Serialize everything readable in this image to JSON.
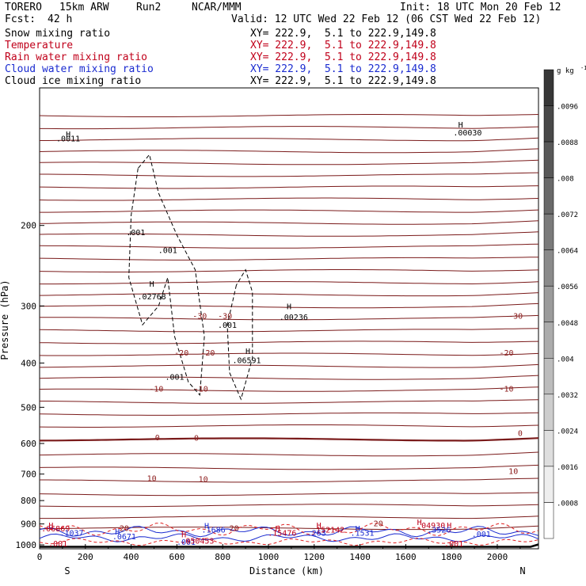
{
  "header": {
    "model": "TORERO",
    "resolution": "15km ARW",
    "run": "Run2",
    "org": "NCAR/MMM",
    "init": "Init: 18 UTC Mon 20 Feb 12",
    "fcst_label": "Fcst:",
    "fcst_value": "42 h",
    "valid": "Valid: 12 UTC Wed 22 Feb 12 (06 CST Wed 22 Feb 12)"
  },
  "fields": [
    {
      "name": "Snow mixing ratio",
      "xy": "XY= 222.9,  5.1 to 222.9,149.8",
      "color": "#000000"
    },
    {
      "name": "Temperature",
      "xy": "XY= 222.9,  5.1 to 222.9,149.8",
      "color": "#c0001a"
    },
    {
      "name": "Rain water mixing ratio",
      "xy": "XY= 222.9,  5.1 to 222.9,149.8",
      "color": "#c0001a"
    },
    {
      "name": "Cloud water mixing ratio",
      "xy": "XY= 222.9,  5.1 to 222.9,149.8",
      "color": "#1a2bd0"
    },
    {
      "name": "Cloud ice mixing ratio",
      "xy": "XY= 222.9,  5.1 to 222.9,149.8",
      "color": "#000000"
    }
  ],
  "chart_data": {
    "type": "line",
    "xlabel": "Distance (km)",
    "ylabel": "Pressure (hPa)",
    "xlim": [
      0,
      2180
    ],
    "ylim": [
      1020,
      100
    ],
    "y_scale": "log",
    "x_ticks": [
      0,
      200,
      400,
      600,
      800,
      1000,
      1200,
      1400,
      1600,
      1800,
      2000
    ],
    "y_ticks": [
      200,
      300,
      400,
      500,
      600,
      700,
      800,
      900,
      1000
    ],
    "end_labels": {
      "left": "S",
      "right": "N"
    },
    "colorbar": {
      "unit": "g kg",
      "unit_exp": "-1",
      "ticks": [
        ".0008",
        ".0016",
        ".0024",
        ".0032",
        ".004",
        ".0048",
        ".0056",
        ".0064",
        ".0072",
        ".008",
        ".0088",
        ".0096"
      ]
    },
    "temperature_contours": [
      {
        "value": -30,
        "label": "-30",
        "p": 325
      },
      {
        "value": -20,
        "label": "-20",
        "p": 385
      },
      {
        "value": -10,
        "label": "-10",
        "p": 460
      },
      {
        "value": 0,
        "label": "0",
        "p": 588
      },
      {
        "value": 10,
        "label": "10",
        "p": 725
      }
    ],
    "annotations": [
      {
        "text": "H",
        "x": 125,
        "p": 128,
        "color": "#000000"
      },
      {
        "text": ".0011",
        "x": 125,
        "p": 131,
        "color": "#000000"
      },
      {
        "text": ".001",
        "x": 420,
        "p": 210,
        "color": "#000000"
      },
      {
        "text": ".001",
        "x": 560,
        "p": 230,
        "color": "#000000"
      },
      {
        "text": "H",
        "x": 490,
        "p": 272,
        "color": "#000000"
      },
      {
        "text": ".02768",
        "x": 490,
        "p": 290,
        "color": "#000000"
      },
      {
        "text": ".001",
        "x": 820,
        "p": 335,
        "color": "#000000"
      },
      {
        "text": "H",
        "x": 910,
        "p": 382,
        "color": "#000000"
      },
      {
        "text": ".06591",
        "x": 905,
        "p": 400,
        "color": "#000000"
      },
      {
        "text": ".001",
        "x": 590,
        "p": 435,
        "color": "#000000"
      },
      {
        "text": "H",
        "x": 1090,
        "p": 305,
        "color": "#000000"
      },
      {
        "text": ".00236",
        "x": 1110,
        "p": 322,
        "color": "#000000"
      },
      {
        "text": "H",
        "x": 1840,
        "p": 122,
        "color": "#000000"
      },
      {
        "text": ".00030",
        "x": 1870,
        "p": 127,
        "color": "#000000"
      },
      {
        "text": "-30",
        "x": 700,
        "p": 320,
        "color": "#8b1a1a"
      },
      {
        "text": "-30",
        "x": 810,
        "p": 320,
        "color": "#8b1a1a"
      },
      {
        "text": "-30",
        "x": 2080,
        "p": 320,
        "color": "#8b1a1a"
      },
      {
        "text": "-20",
        "x": 620,
        "p": 385,
        "color": "#8b1a1a"
      },
      {
        "text": "-20",
        "x": 735,
        "p": 385,
        "color": "#8b1a1a"
      },
      {
        "text": "-20",
        "x": 2040,
        "p": 385,
        "color": "#8b1a1a"
      },
      {
        "text": "-10",
        "x": 510,
        "p": 462,
        "color": "#8b1a1a"
      },
      {
        "text": "-10",
        "x": 705,
        "p": 462,
        "color": "#8b1a1a"
      },
      {
        "text": "-10",
        "x": 2040,
        "p": 462,
        "color": "#8b1a1a"
      },
      {
        "text": "0",
        "x": 515,
        "p": 590,
        "color": "#8b1a1a"
      },
      {
        "text": "0",
        "x": 685,
        "p": 592,
        "color": "#8b1a1a"
      },
      {
        "text": "0",
        "x": 2100,
        "p": 578,
        "color": "#8b1a1a"
      },
      {
        "text": "10",
        "x": 490,
        "p": 725,
        "color": "#8b1a1a"
      },
      {
        "text": "10",
        "x": 715,
        "p": 728,
        "color": "#8b1a1a"
      },
      {
        "text": "10",
        "x": 2070,
        "p": 700,
        "color": "#8b1a1a"
      },
      {
        "text": "20",
        "x": 370,
        "p": 933,
        "color": "#8b1a1a"
      },
      {
        "text": "20",
        "x": 850,
        "p": 933,
        "color": "#8b1a1a"
      },
      {
        "text": "20",
        "x": 1480,
        "p": 910,
        "color": "#8b1a1a"
      },
      {
        "text": "H",
        "x": 50,
        "p": 920,
        "color": "#c0001a"
      },
      {
        "text": ".06869",
        "x": 70,
        "p": 935,
        "color": "#c0001a"
      },
      {
        "text": ".1037",
        "x": 140,
        "p": 955,
        "color": "#1a2bd0"
      },
      {
        "text": "H",
        "x": 340,
        "p": 950,
        "color": "#1a2bd0"
      },
      {
        "text": ".0671",
        "x": 370,
        "p": 972,
        "color": "#1a2bd0"
      },
      {
        "text": "H",
        "x": 630,
        "p": 962,
        "color": "#c0001a"
      },
      {
        "text": ".001",
        "x": 640,
        "p": 1000,
        "color": "#1a2bd0"
      },
      {
        "text": ".050453",
        "x": 690,
        "p": 993,
        "color": "#c0001a"
      },
      {
        "text": "H",
        "x": 730,
        "p": 922,
        "color": "#1a2bd0"
      },
      {
        "text": ".1686",
        "x": 760,
        "p": 940,
        "color": "#1a2bd0"
      },
      {
        "text": "H",
        "x": 1040,
        "p": 935,
        "color": "#c0001a"
      },
      {
        "text": ".15476",
        "x": 1060,
        "p": 955,
        "color": "#c0001a"
      },
      {
        "text": "H",
        "x": 1220,
        "p": 920,
        "color": "#c0001a"
      },
      {
        "text": ".152142",
        "x": 1260,
        "p": 940,
        "color": "#c0001a"
      },
      {
        "text": ".263",
        "x": 1210,
        "p": 955,
        "color": "#1a2bd0"
      },
      {
        "text": "H",
        "x": 1390,
        "p": 935,
        "color": "#1a2bd0"
      },
      {
        "text": ".1531",
        "x": 1410,
        "p": 955,
        "color": "#1a2bd0"
      },
      {
        "text": "H",
        "x": 1660,
        "p": 905,
        "color": "#c0001a"
      },
      {
        "text": ".04930",
        "x": 1710,
        "p": 920,
        "color": "#c0001a"
      },
      {
        "text": "H",
        "x": 1790,
        "p": 920,
        "color": "#c0001a"
      },
      {
        "text": ".3526",
        "x": 1745,
        "p": 940,
        "color": "#1a2bd0"
      },
      {
        "text": ".001",
        "x": 1930,
        "p": 960,
        "color": "#1a2bd0"
      },
      {
        "text": ".001",
        "x": 80,
        "p": 1008,
        "color": "#c0001a"
      },
      {
        "text": ".001",
        "x": 1810,
        "p": 1008,
        "color": "#c0001a"
      }
    ]
  }
}
